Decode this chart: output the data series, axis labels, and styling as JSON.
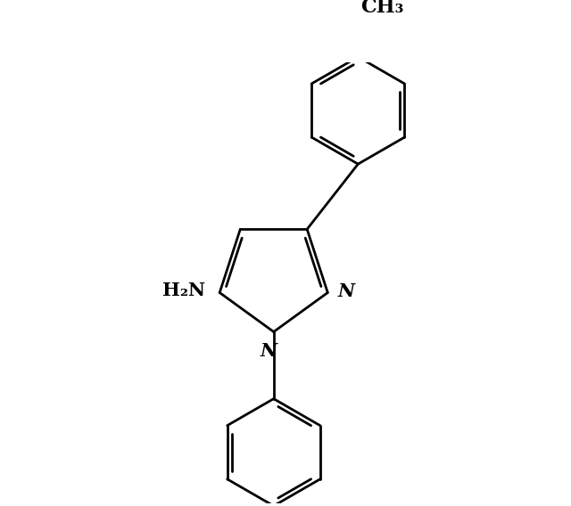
{
  "bg_color": "#ffffff",
  "line_color": "#000000",
  "line_width": 2.0,
  "figsize": [
    6.4,
    5.68
  ],
  "dpi": 100,
  "xlim": [
    -1.8,
    3.2
  ],
  "ylim": [
    -2.8,
    2.8
  ],
  "font_size_N": 15,
  "font_size_NH2": 15,
  "font_size_CH3": 16
}
